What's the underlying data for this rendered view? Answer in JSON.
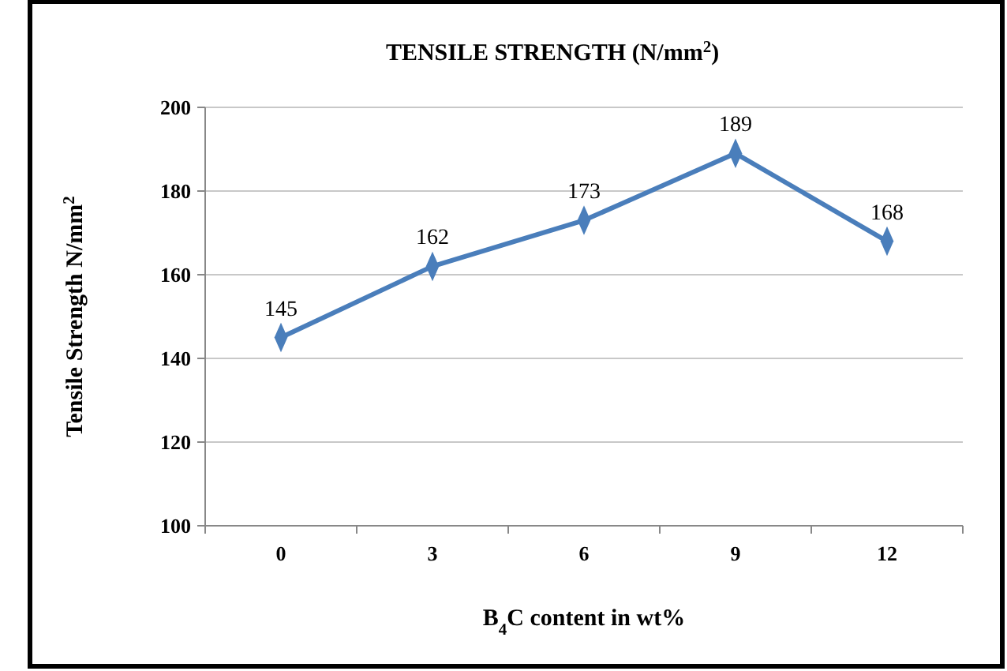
{
  "chart_data": {
    "type": "line",
    "title": "TENSILE STRENGTH (N/mm$^{2}$)",
    "xlabel": "B$_{4}$C content in wt%",
    "ylabel": "Tensile Strength N/mm$^{2}$",
    "categories": [
      "0",
      "3",
      "6",
      "9",
      "12"
    ],
    "series": [
      {
        "color": "#4a7ebb",
        "values": [
          145,
          162,
          173,
          189,
          168
        ]
      }
    ],
    "ylim": [
      100,
      200
    ],
    "yticks": [
      100,
      120,
      140,
      160,
      180,
      200
    ],
    "grid": "y",
    "marker": "diamond",
    "data_labels": true
  }
}
